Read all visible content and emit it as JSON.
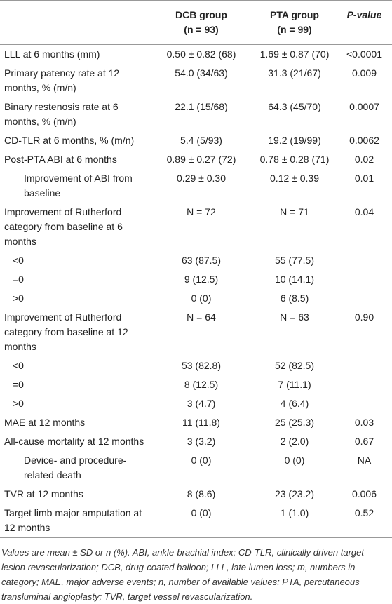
{
  "table": {
    "header": [
      {
        "name": "DCB group",
        "n": "(n = 93)"
      },
      {
        "name": "PTA group",
        "n": "(n = 99)"
      },
      {
        "name": "P-value"
      }
    ],
    "rows": [
      [
        "LLL at 6 months (mm)",
        "0.50 ± 0.82 (68)",
        "1.69 ± 0.87 (70)",
        "<0.0001"
      ],
      [
        "Primary patency rate at 12 months, % (m/n)",
        "54.0 (34/63)",
        "31.3 (21/67)",
        "0.009"
      ],
      [
        "Binary restenosis rate at 6 months, % (m/n)",
        "22.1 (15/68)",
        "64.3 (45/70)",
        "0.0007"
      ],
      [
        "CD-TLR at 6 months, % (m/n)",
        "5.4 (5/93)",
        "19.2 (19/99)",
        "0.0062"
      ],
      [
        "Post-PTA ABI at 6 months",
        "0.89 ± 0.27 (72)",
        "0.78 ± 0.28 (71)",
        "0.02"
      ],
      [
        "Improvement of ABI from baseline",
        "0.29 ± 0.30",
        "0.12 ± 0.39",
        "0.01"
      ],
      [
        "Improvement of Rutherford category from baseline at 6 months",
        "N = 72",
        "N = 71",
        "0.04"
      ],
      [
        "<0",
        "63 (87.5)",
        "55 (77.5)"
      ],
      [
        "=0",
        "9 (12.5)",
        "10 (14.1)"
      ],
      [
        ">0",
        "0 (0)",
        "6 (8.5)"
      ],
      [
        "Improvement of Rutherford category from baseline at 12 months",
        "N = 64",
        "N = 63",
        "0.90"
      ],
      [
        "<0",
        "53 (82.8)",
        "52 (82.5)"
      ],
      [
        "=0",
        "8 (12.5)",
        "7 (11.1)"
      ],
      [
        ">0",
        "3 (4.7)",
        "4 (6.4)"
      ],
      [
        "MAE at 12 months",
        "11 (11.8)",
        "25 (25.3)",
        "0.03"
      ],
      [
        "All-cause mortality at 12 months",
        "3 (3.2)",
        "2 (2.0)",
        "0.67"
      ],
      [
        "Device- and procedure-related death",
        "0 (0)",
        "0 (0)",
        "NA"
      ],
      [
        "TVR at 12 months",
        "8 (8.6)",
        "23 (23.2)",
        "0.006"
      ],
      [
        "Target limb major amputation at 12 months",
        "0 (0)",
        "1 (1.0)",
        "0.52"
      ]
    ],
    "footnote": "Values are mean ± SD or n (%). ABI, ankle-brachial index; CD-TLR, clinically driven target lesion revascularization; DCB, drug-coated balloon; LLL, late lumen loss; m, numbers in category; MAE, major adverse events; n, number of available values; PTA, percutaneous transluminal angioplasty; TVR, target vessel revascularization."
  }
}
